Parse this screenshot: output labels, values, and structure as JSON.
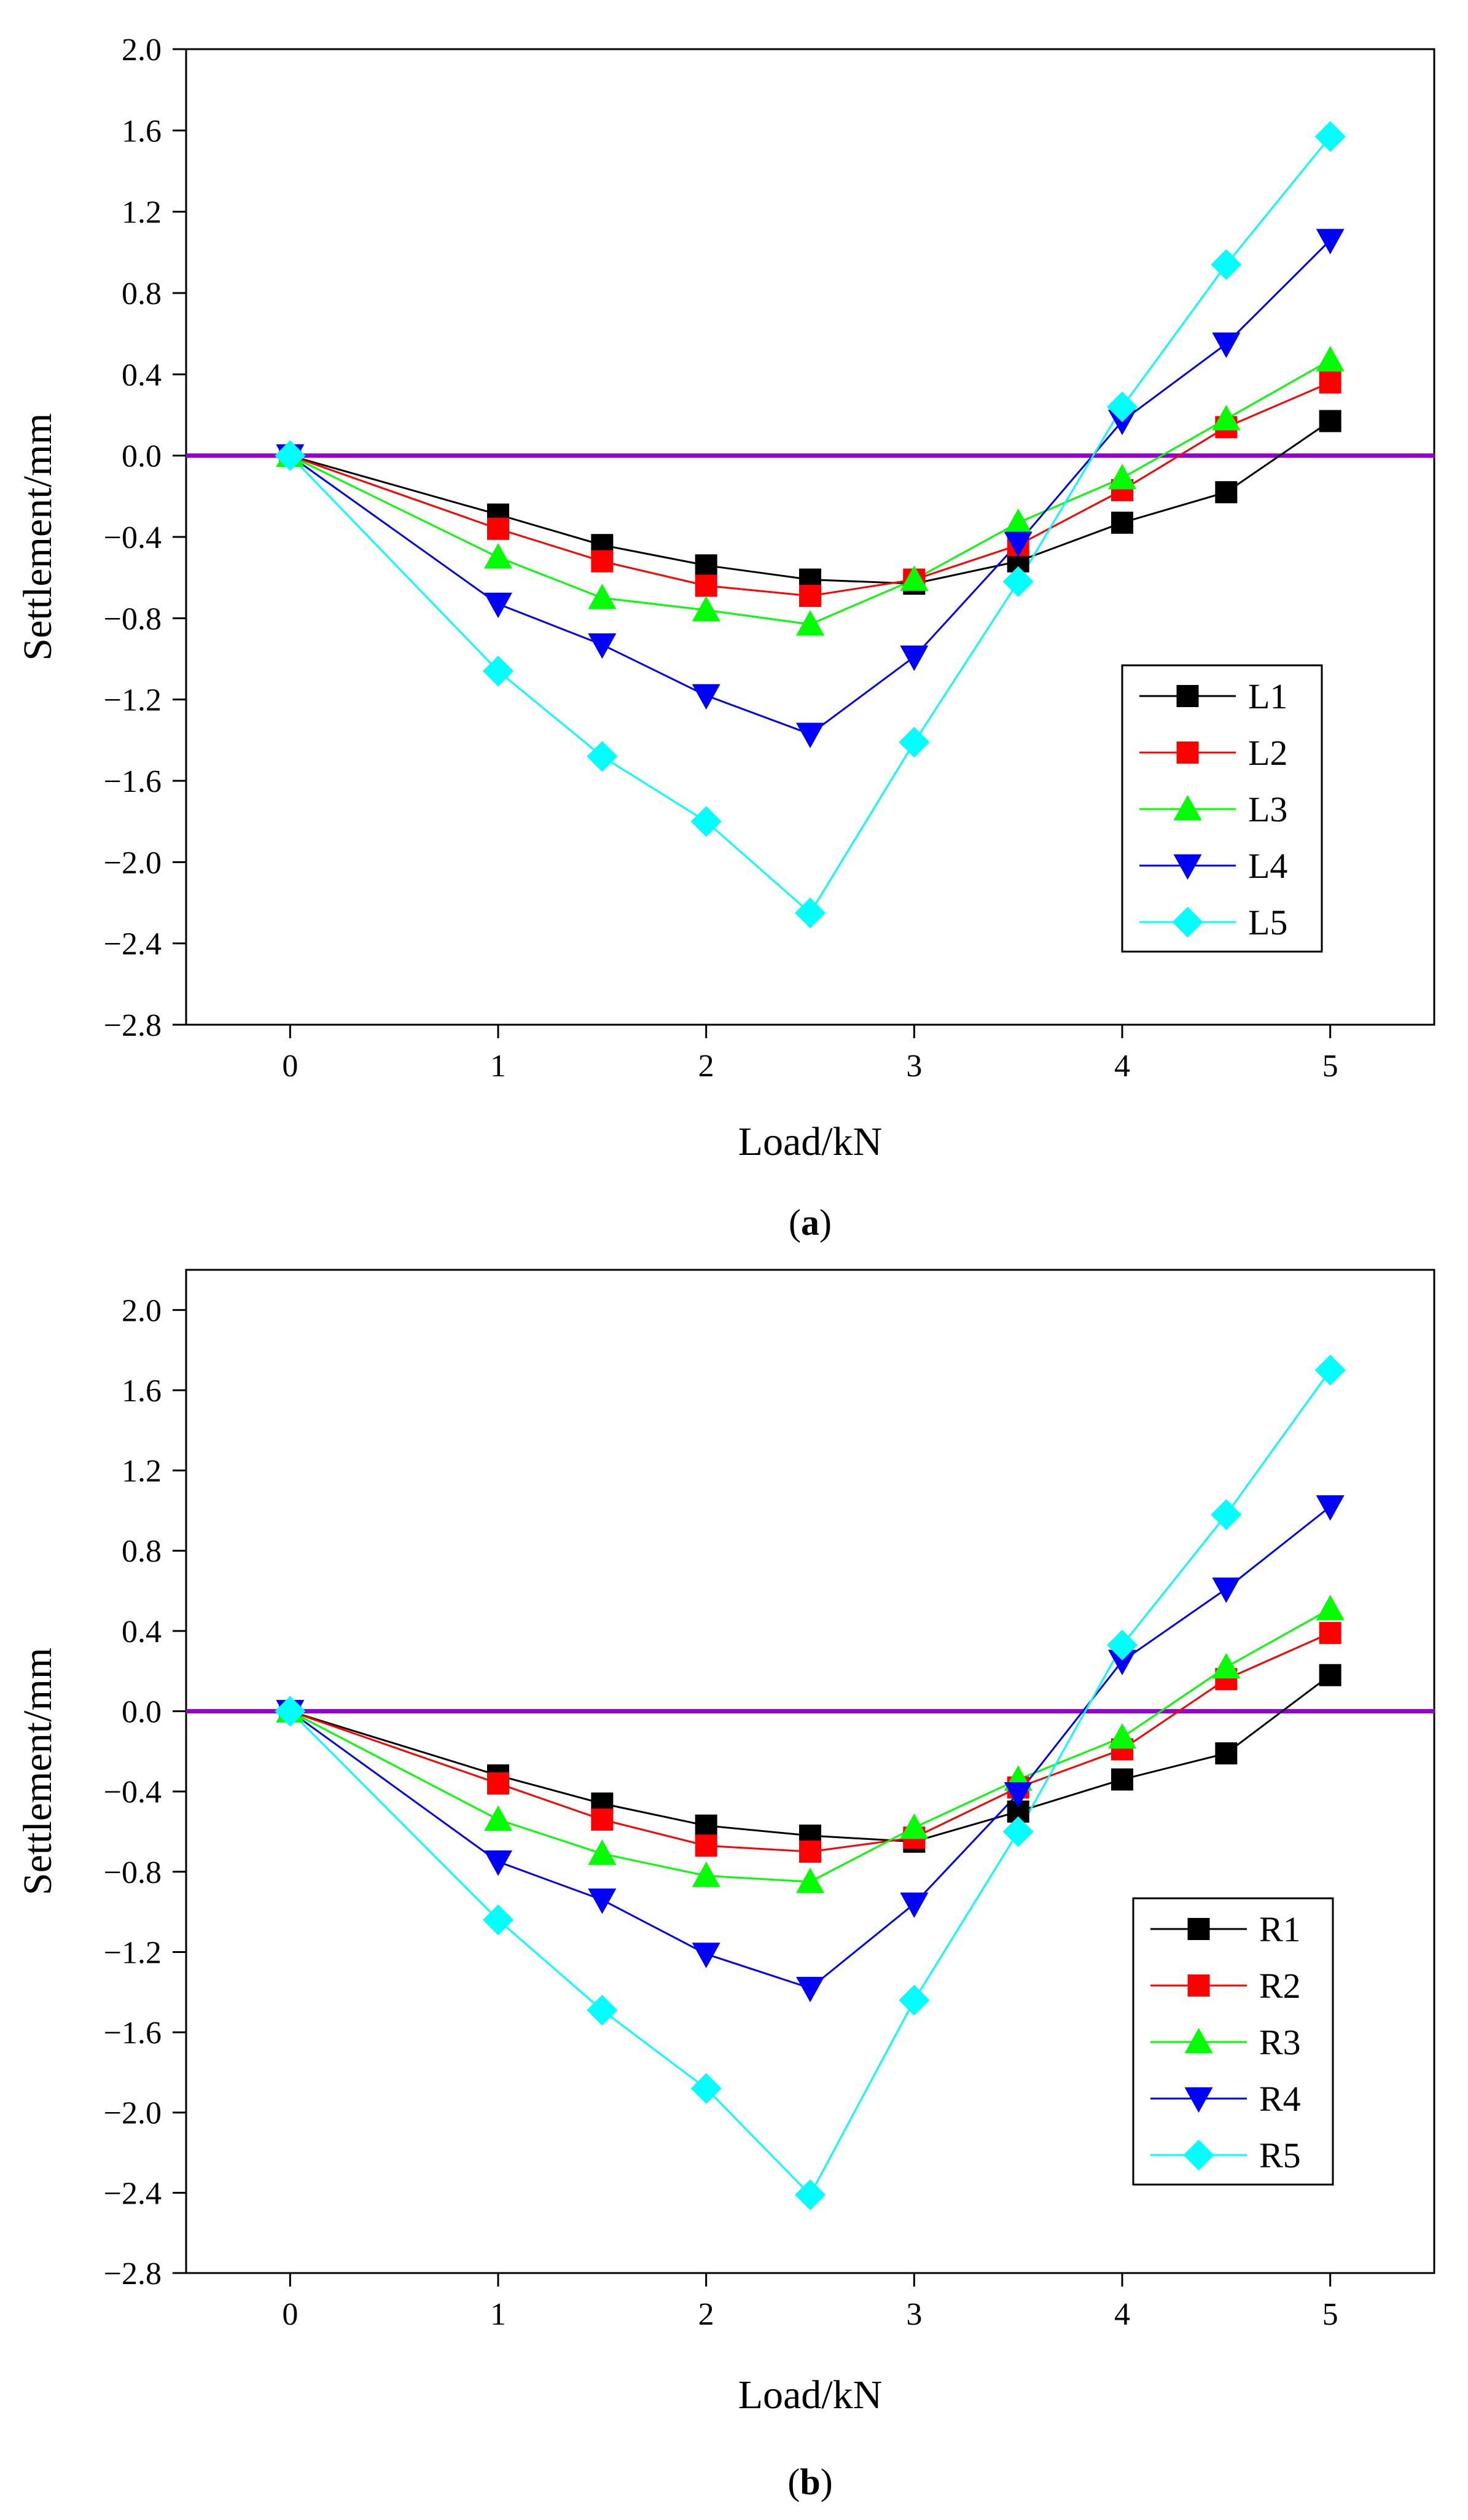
{
  "chart_data": [
    {
      "type": "line",
      "caption": "a",
      "xlabel": "Load/kN",
      "ylabel": "Settlement/mm",
      "xlim": [
        -0.5,
        5.5
      ],
      "ylim": [
        -2.8,
        2.0
      ],
      "xticks": [
        0,
        1,
        2,
        3,
        4,
        5
      ],
      "yticks": [
        -2.8,
        -2.4,
        -2.0,
        -1.6,
        -1.2,
        -0.8,
        -0.4,
        0.0,
        0.4,
        0.8,
        1.2,
        1.6,
        2.0
      ],
      "ytick_labels": [
        "−2.8",
        "−2.4",
        "−2.0",
        "−1.6",
        "−1.2",
        "−0.8",
        "−0.4",
        "0.0",
        "0.4",
        "0.8",
        "1.2",
        "1.6",
        "2.0"
      ],
      "reference_line": {
        "y": 0.0,
        "color": "#9400D3"
      },
      "legend_position": "center-right",
      "x": [
        0,
        1,
        1.5,
        2,
        2.5,
        3,
        3.5,
        4,
        4.5,
        5
      ],
      "series": [
        {
          "name": "L1",
          "color": "#000000",
          "marker": "square",
          "values": [
            0,
            -0.29,
            -0.44,
            -0.54,
            -0.61,
            -0.63,
            -0.52,
            -0.33,
            -0.18,
            0.17
          ]
        },
        {
          "name": "L2",
          "color": "#FF0000",
          "marker": "square",
          "values": [
            0,
            -0.36,
            -0.52,
            -0.64,
            -0.69,
            -0.61,
            -0.44,
            -0.17,
            0.14,
            0.36
          ]
        },
        {
          "name": "L3",
          "color": "#00FF00",
          "marker": "triangle-up",
          "values": [
            0,
            -0.5,
            -0.7,
            -0.76,
            -0.83,
            -0.61,
            -0.33,
            -0.11,
            0.18,
            0.47
          ]
        },
        {
          "name": "L4",
          "color": "#0000FF",
          "marker": "triangle-down",
          "values": [
            0,
            -0.73,
            -0.93,
            -1.18,
            -1.37,
            -0.99,
            -0.43,
            0.17,
            0.55,
            1.06
          ]
        },
        {
          "name": "L5",
          "color": "#00FFFF",
          "marker": "diamond",
          "values": [
            0,
            -1.06,
            -1.48,
            -1.8,
            -2.25,
            -1.41,
            -0.62,
            0.24,
            0.94,
            1.57
          ]
        }
      ]
    },
    {
      "type": "line",
      "caption": "b",
      "xlabel": "Load/kN",
      "ylabel": "Settlement/mm",
      "xlim": [
        -0.5,
        5.5
      ],
      "ylim": [
        -2.8,
        2.2
      ],
      "xticks": [
        0,
        1,
        2,
        3,
        4,
        5
      ],
      "yticks": [
        -2.8,
        -2.4,
        -2.0,
        -1.6,
        -1.2,
        -0.8,
        -0.4,
        0.0,
        0.4,
        0.8,
        1.2,
        1.6,
        2.0
      ],
      "ytick_labels": [
        "−2.8",
        "−2.4",
        "−2.0",
        "−1.6",
        "−1.2",
        "−0.8",
        "−0.4",
        "0.0",
        "0.4",
        "0.8",
        "1.2",
        "1.6",
        "2.0"
      ],
      "reference_line": {
        "y": 0.0,
        "color": "#9400D3"
      },
      "legend_position": "bottom-right",
      "x": [
        0,
        1,
        1.5,
        2,
        2.5,
        3,
        3.5,
        4,
        4.5,
        5
      ],
      "series": [
        {
          "name": "R1",
          "color": "#000000",
          "marker": "square",
          "values": [
            0,
            -0.32,
            -0.46,
            -0.57,
            -0.62,
            -0.65,
            -0.5,
            -0.34,
            -0.21,
            0.18
          ]
        },
        {
          "name": "R2",
          "color": "#FF0000",
          "marker": "square",
          "values": [
            0,
            -0.36,
            -0.54,
            -0.67,
            -0.7,
            -0.63,
            -0.38,
            -0.19,
            0.16,
            0.39
          ]
        },
        {
          "name": "R3",
          "color": "#00FF00",
          "marker": "triangle-up",
          "values": [
            0,
            -0.54,
            -0.71,
            -0.82,
            -0.85,
            -0.58,
            -0.34,
            -0.13,
            0.22,
            0.51
          ]
        },
        {
          "name": "R4",
          "color": "#0000FF",
          "marker": "triangle-down",
          "values": [
            0,
            -0.75,
            -0.94,
            -1.21,
            -1.38,
            -0.96,
            -0.41,
            0.25,
            0.61,
            1.02
          ]
        },
        {
          "name": "R5",
          "color": "#00FFFF",
          "marker": "diamond",
          "values": [
            0,
            -1.04,
            -1.49,
            -1.88,
            -2.41,
            -1.44,
            -0.6,
            0.33,
            0.98,
            1.7
          ]
        }
      ]
    }
  ]
}
